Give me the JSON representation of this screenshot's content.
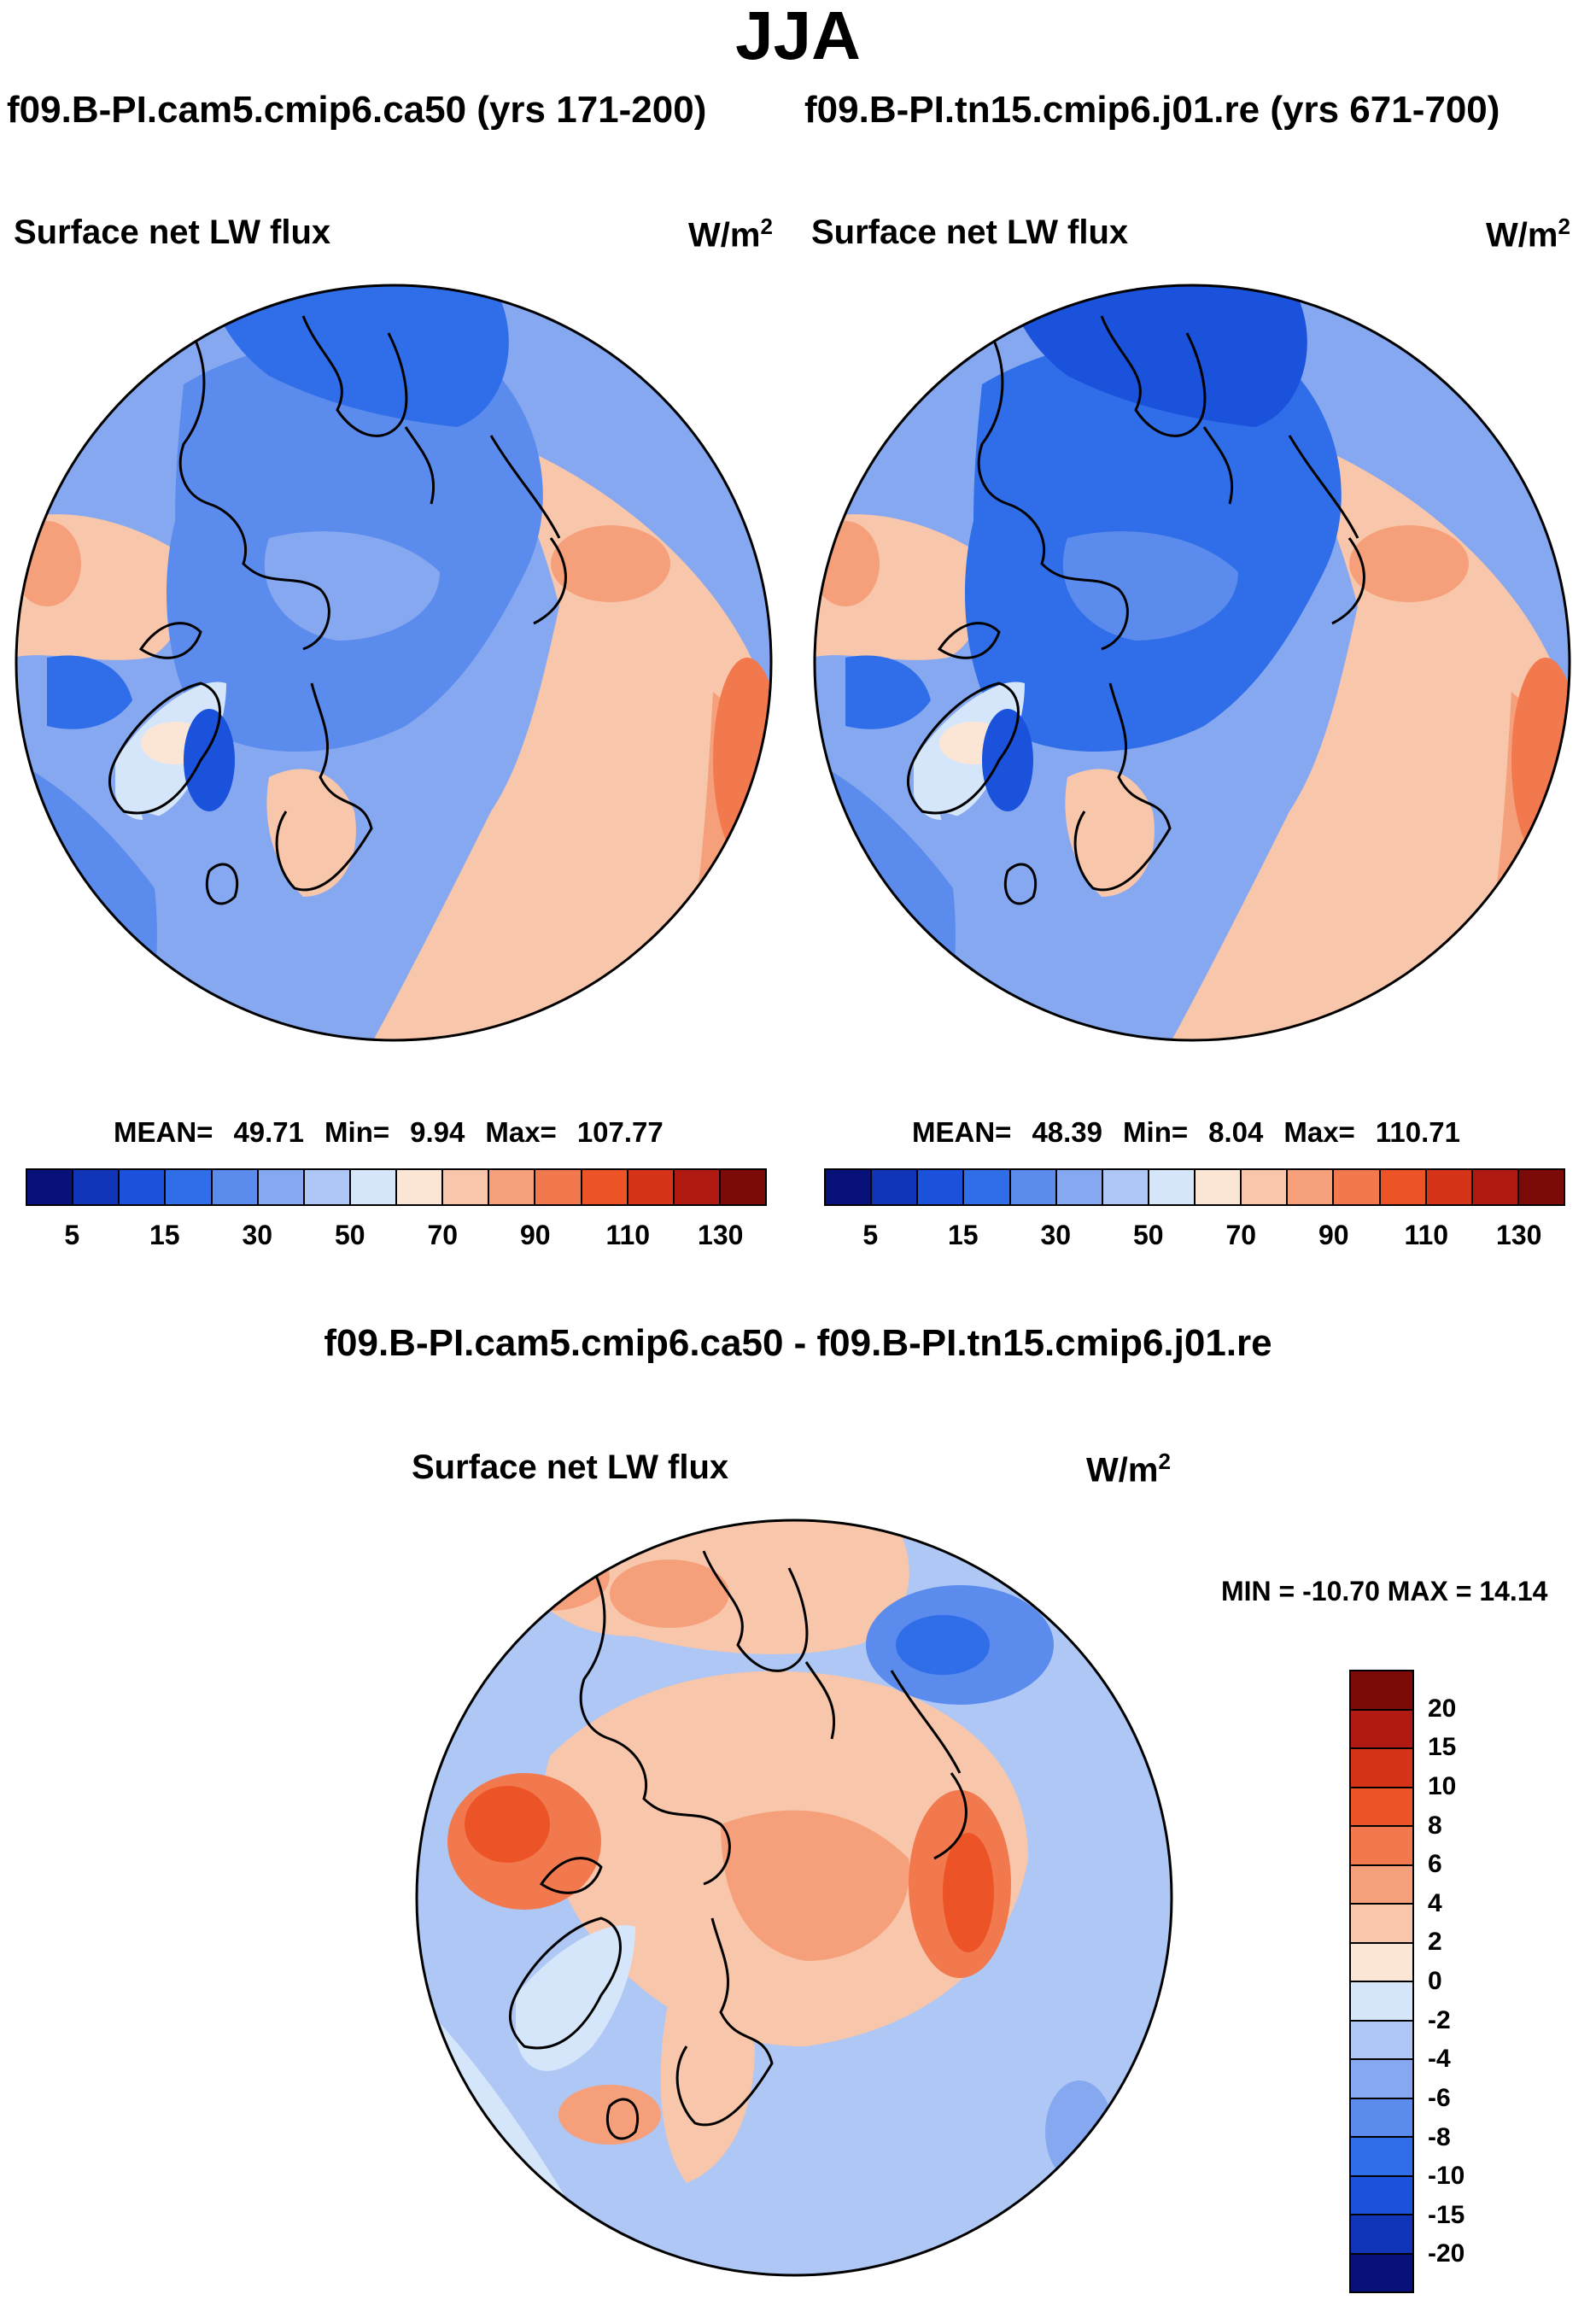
{
  "season": "JJA",
  "case1": {
    "title": "f09.B-PI.cam5.cmip6.ca50 (yrs 171-200)"
  },
  "case2": {
    "title": "f09.B-PI.tn15.cmip6.j01.re (yrs 671-700)"
  },
  "panel_left": {
    "variable": "Surface net LW flux",
    "units_base": "W/m",
    "units_exp": "2",
    "stats": {
      "mean_label": "MEAN=",
      "mean": "49.71",
      "min_label": "Min=",
      "min": "9.94",
      "max_label": "Max=",
      "max": "107.77"
    }
  },
  "panel_right": {
    "variable": "Surface net LW flux",
    "units_base": "W/m",
    "units_exp": "2",
    "stats": {
      "mean_label": "MEAN=",
      "mean": "48.39",
      "min_label": "Min=",
      "min": "8.04",
      "max_label": "Max=",
      "max": "110.71"
    }
  },
  "diff_panel": {
    "title": "f09.B-PI.cam5.cmip6.ca50 - f09.B-PI.tn15.cmip6.j01.re",
    "variable": "Surface net LW flux",
    "units_base": "W/m",
    "units_exp": "2",
    "minmax": "MIN = -10.70 MAX =  14.14"
  },
  "colorbar_abs": {
    "colors": [
      "#08107a",
      "#0f34b8",
      "#1a52dc",
      "#2f6ee8",
      "#5b8bec",
      "#86a8f0",
      "#aec7f5",
      "#d6e6fa",
      "#fbe6d6",
      "#f8c6aa",
      "#f5a07a",
      "#f2784e",
      "#ec5428",
      "#d63418",
      "#b01a10",
      "#7c0a08"
    ],
    "labels": [
      "5",
      "15",
      "30",
      "50",
      "70",
      "90",
      "110",
      "130"
    ]
  },
  "colorbar_diff": {
    "colors": [
      "#7c0a08",
      "#b01a10",
      "#d63418",
      "#ec5428",
      "#f2784e",
      "#f5a07a",
      "#f8c6aa",
      "#fbe6d6",
      "#d6e6fa",
      "#aec7f5",
      "#86a8f0",
      "#5b8bec",
      "#2f6ee8",
      "#1a52dc",
      "#0f34b8",
      "#08107a"
    ],
    "labels": [
      "20",
      "15",
      "10",
      "8",
      "6",
      "4",
      "2",
      "0",
      "-2",
      "-4",
      "-6",
      "-8",
      "-10",
      "-15",
      "-20"
    ]
  }
}
